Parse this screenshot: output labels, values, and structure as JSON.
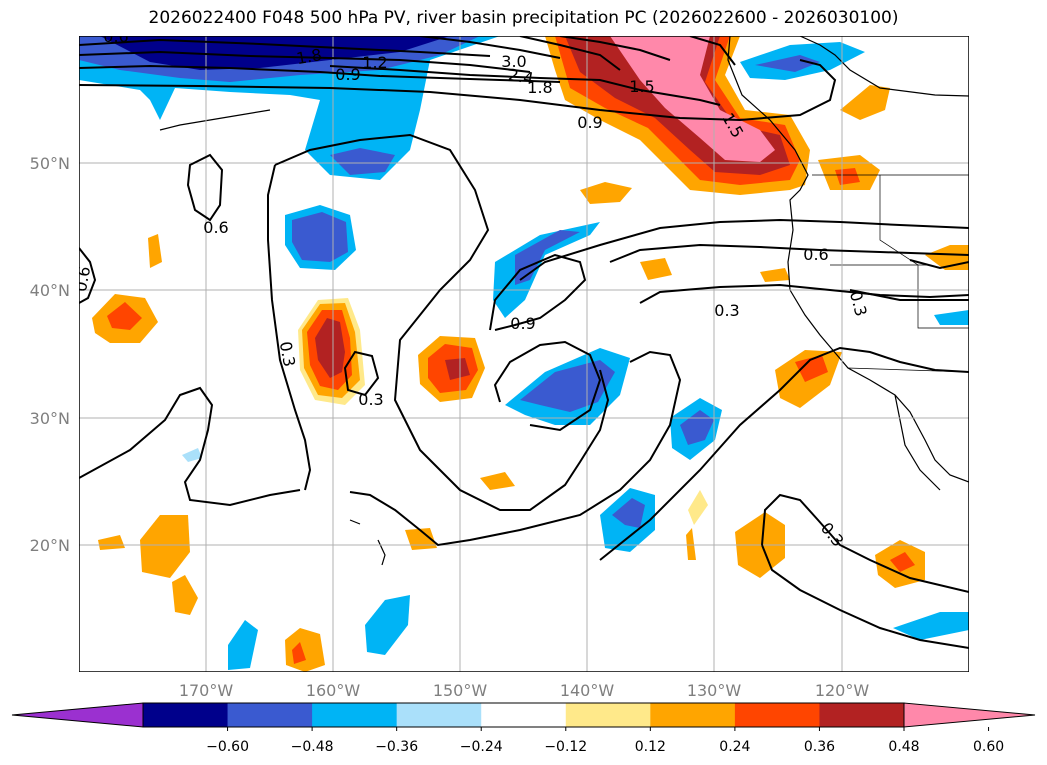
{
  "title": "2026022400 F048 500 hPa PV, river basin precipitation PC (2026022600 - 2026030100)",
  "lon_labels": [
    "170°W",
    "160°W",
    "150°W",
    "140°W",
    "130°W",
    "120°W"
  ],
  "lat_labels": [
    "50°N",
    "40°N",
    "30°N",
    "20°N"
  ],
  "contour_labels": [
    "0.6",
    "0.6",
    "0.9",
    "0.3",
    "0.3",
    "0.9",
    "0.3",
    "0.6",
    "0.3",
    "0.3",
    "0.6",
    "1.8",
    "1.5",
    "3.0",
    "2.4",
    "1.2",
    "1.5",
    "0.9",
    "1.8"
  ],
  "colorbar": {
    "tick_labels": [
      "−0.60",
      "−0.48",
      "−0.36",
      "−0.24",
      "−0.12",
      "0.12",
      "0.24",
      "0.36",
      "0.48",
      "0.60"
    ],
    "colors": [
      "#9b30d0",
      "#00008b",
      "#3a5ad0",
      "#00b4f5",
      "#aae0fa",
      "#ffffff",
      "#ffe98a",
      "#ffa500",
      "#ff4500",
      "#b22222",
      "#ff88aa"
    ]
  }
}
